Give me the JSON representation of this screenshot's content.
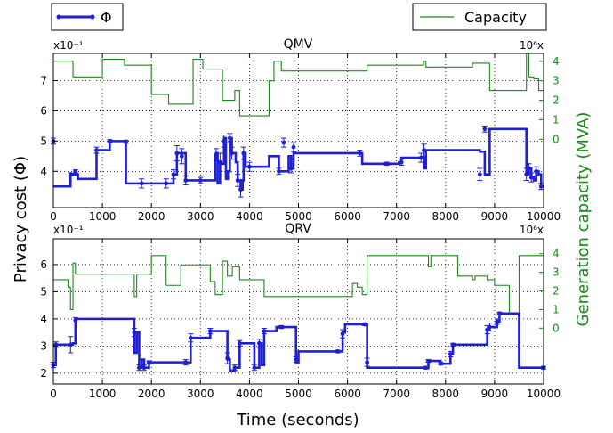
{
  "legend": {
    "phi_label": "Φ",
    "capacity_label": "Capacity"
  },
  "colors": {
    "phi": "#1f1fd6",
    "capacity": "#1a8a1a",
    "right_axis": "#1a8a1a",
    "grid": "#000000"
  },
  "shared": {
    "xlabel": "Time (seconds)",
    "ylabel_left": "Privacy cost (Φ)",
    "ylabel_right": "Generation capacity (MVA)",
    "x_ticks": [
      "0",
      "1000",
      "2000",
      "3000",
      "4000",
      "5000",
      "6000",
      "7000",
      "8000",
      "9000",
      "10000"
    ]
  },
  "chart_data": [
    {
      "type": "line",
      "title": "QMV",
      "left_multiplier": "x10⁻¹",
      "right_multiplier": "10⁶x",
      "xlim": [
        0,
        10000
      ],
      "ylim_left": [
        2.8,
        7.9
      ],
      "y_ticks_left": [
        "4",
        "5",
        "6",
        "7"
      ],
      "ylim_right": [
        -3.5,
        4.4
      ],
      "y_ticks_right": [
        "0",
        "1",
        "2",
        "3",
        "4"
      ],
      "grid": true,
      "series": [
        {
          "name": "Φ",
          "axis": "left",
          "step": true,
          "x": [
            0,
            300,
            350,
            450,
            500,
            850,
            880,
            1100,
            1150,
            1450,
            1480,
            1800,
            2300,
            2450,
            2500,
            2520,
            2620,
            2700,
            2800,
            3000,
            3300,
            3320,
            3350,
            3400,
            3420,
            3480,
            3520,
            3560,
            3600,
            3640,
            3720,
            3760,
            3800,
            3820,
            3860,
            3880,
            3920,
            4000,
            4400,
            4560,
            4600,
            4700,
            4800,
            4850,
            4900,
            4950,
            6250,
            6300,
            6800,
            7050,
            7100,
            7500,
            7560,
            7600,
            8600,
            8700,
            8800,
            8900,
            9600,
            9650,
            9700,
            9750,
            9800,
            9850,
            9900,
            9950,
            10000
          ],
          "values": [
            3.5,
            3.5,
            3.9,
            3.9,
            3.75,
            3.75,
            4.7,
            4.7,
            5.0,
            5.0,
            3.6,
            3.6,
            3.6,
            3.9,
            3.9,
            4.6,
            4.6,
            3.7,
            3.7,
            3.7,
            4.55,
            4.6,
            3.6,
            4.3,
            4.25,
            5.1,
            3.75,
            4.0,
            5.1,
            4.6,
            4.3,
            3.7,
            3.7,
            3.4,
            3.7,
            4.6,
            4.15,
            4.15,
            4.5,
            4.5,
            4.0,
            4.0,
            4.5,
            4.1,
            4.6,
            4.6,
            4.6,
            4.25,
            4.25,
            4.3,
            4.45,
            4.45,
            4.1,
            4.7,
            4.7,
            4.65,
            3.9,
            5.4,
            5.4,
            3.9,
            4.1,
            3.8,
            3.7,
            4.0,
            3.9,
            3.5,
            3.5
          ],
          "error_x": [
            0,
            350,
            450,
            880,
            1150,
            1480,
            1800,
            2300,
            2450,
            2520,
            2620,
            2700,
            3000,
            3320,
            3400,
            3480,
            3600,
            3640,
            3760,
            3820,
            3880,
            4000,
            4600,
            4700,
            4850,
            4900,
            6250,
            6800,
            7100,
            7500,
            7560,
            8700,
            8800,
            9650,
            9700,
            9750,
            9850,
            9950
          ],
          "error_y": [
            5.0,
            3.9,
            4.0,
            4.7,
            5.0,
            4.98,
            3.6,
            3.6,
            3.9,
            4.6,
            4.5,
            3.7,
            3.7,
            4.55,
            4.3,
            5.0,
            5.1,
            4.6,
            3.7,
            3.4,
            4.6,
            4.15,
            4.0,
            4.95,
            4.1,
            4.8,
            4.6,
            4.25,
            4.3,
            4.45,
            4.7,
            3.9,
            5.4,
            3.9,
            4.1,
            3.8,
            4.0,
            3.5
          ],
          "error_size": [
            0.1,
            0.05,
            0.05,
            0.1,
            0.05,
            0.05,
            0.15,
            0.15,
            0.15,
            0.25,
            0.25,
            0.15,
            0.1,
            0.2,
            0.3,
            0.2,
            0.15,
            0.2,
            0.2,
            0.25,
            0.2,
            0.15,
            0.1,
            0.15,
            0.15,
            0.15,
            0.1,
            0.05,
            0.1,
            0.15,
            0.2,
            0.2,
            0.1,
            0.2,
            0.15,
            0.15,
            0.15,
            0.1
          ]
        },
        {
          "name": "Capacity",
          "axis": "right",
          "step": true,
          "x": [
            0,
            350,
            400,
            800,
            1000,
            1400,
            1450,
            1600,
            2000,
            2350,
            2800,
            2850,
            3000,
            3050,
            3400,
            3450,
            3700,
            3800,
            3850,
            4300,
            4400,
            4500,
            4650,
            5000,
            6200,
            6400,
            7200,
            7550,
            7600,
            8200,
            8550,
            8700,
            8850,
            8900,
            9200,
            9400,
            9600,
            9650,
            9700,
            9800,
            9900,
            10000
          ],
          "values": [
            4.0,
            4.0,
            3.2,
            3.2,
            4.1,
            4.1,
            3.8,
            3.8,
            2.3,
            1.8,
            1.8,
            4.1,
            4.1,
            3.6,
            3.6,
            2.0,
            2.5,
            1.2,
            1.2,
            1.2,
            3.0,
            4.0,
            3.5,
            3.5,
            3.5,
            3.8,
            3.8,
            4.0,
            3.7,
            3.7,
            3.9,
            3.9,
            3.9,
            2.5,
            2.5,
            2.5,
            2.5,
            4.4,
            3.2,
            3.1,
            2.5,
            2.5
          ]
        }
      ]
    },
    {
      "type": "line",
      "title": "QRV",
      "left_multiplier": "x10⁻¹",
      "right_multiplier": "10⁶x",
      "xlim": [
        0,
        10000
      ],
      "ylim_left": [
        1.6,
        6.95
      ],
      "y_ticks_left": [
        "2",
        "3",
        "4",
        "5",
        "6"
      ],
      "ylim_right": [
        -3.0,
        4.8
      ],
      "y_ticks_right": [
        "0",
        "1",
        "2",
        "3",
        "4"
      ],
      "grid": true,
      "series": [
        {
          "name": "Φ",
          "axis": "left",
          "step": true,
          "x": [
            0,
            50,
            350,
            400,
            450,
            1650,
            1700,
            1750,
            1800,
            1850,
            1950,
            2700,
            2800,
            3200,
            3300,
            3550,
            3600,
            3700,
            3800,
            4100,
            4200,
            4250,
            4300,
            4550,
            4650,
            4950,
            5000,
            5800,
            5900,
            5950,
            6350,
            6400,
            7600,
            7650,
            7900,
            8100,
            8150,
            8750,
            8850,
            8900,
            9050,
            9100,
            9150,
            9500,
            10000
          ],
          "values": [
            2.3,
            3.05,
            3.05,
            3.1,
            4.0,
            2.75,
            3.5,
            2.2,
            2.5,
            2.2,
            2.4,
            2.4,
            3.3,
            3.55,
            3.55,
            2.5,
            2.1,
            2.2,
            3.1,
            2.2,
            3.1,
            2.3,
            3.55,
            3.7,
            3.7,
            2.4,
            2.8,
            2.8,
            3.5,
            3.8,
            3.8,
            2.2,
            2.2,
            2.45,
            2.35,
            2.7,
            3.05,
            3.05,
            3.6,
            3.7,
            3.9,
            4.2,
            4.2,
            2.2,
            2.2
          ],
          "error_x": [
            0,
            50,
            350,
            450,
            1650,
            1750,
            1850,
            1950,
            2700,
            2800,
            3200,
            3550,
            3700,
            3800,
            4100,
            4200,
            4300,
            4650,
            4950,
            5800,
            5900,
            6350,
            6400,
            7600,
            7650,
            7900,
            8100,
            8150,
            8850,
            8900,
            9050,
            9100,
            10000
          ],
          "error_y": [
            2.3,
            3.05,
            3.05,
            3.95,
            3.5,
            2.2,
            2.2,
            2.4,
            2.4,
            3.3,
            3.55,
            2.55,
            2.2,
            3.1,
            2.2,
            3.1,
            3.55,
            3.7,
            2.5,
            2.8,
            3.45,
            3.8,
            2.4,
            2.2,
            2.45,
            2.35,
            2.7,
            3.05,
            3.6,
            3.7,
            3.9,
            4.2,
            2.2
          ],
          "error_size": [
            0.1,
            0.1,
            0.3,
            0.1,
            0.15,
            0.1,
            0.1,
            0.05,
            0.1,
            0.15,
            0.1,
            0.2,
            0.1,
            0.1,
            0.1,
            0.15,
            0.1,
            0.05,
            0.1,
            0.05,
            0.15,
            0.05,
            0.15,
            0.05,
            0.05,
            0.05,
            0.1,
            0.05,
            0.15,
            0.15,
            0.1,
            0.05,
            0.05
          ]
        },
        {
          "name": "Capacity",
          "axis": "right",
          "step": true,
          "x": [
            0,
            250,
            300,
            350,
            400,
            450,
            1600,
            1650,
            1700,
            1800,
            2000,
            2250,
            2300,
            2550,
            2600,
            3050,
            3200,
            3300,
            3450,
            3550,
            3650,
            3800,
            4150,
            4300,
            4700,
            5050,
            6100,
            6200,
            6300,
            6400,
            7600,
            7650,
            7700,
            8150,
            8250,
            8550,
            8600,
            8850,
            9000,
            9300,
            9500,
            10000
          ],
          "values": [
            2.6,
            2.6,
            2.2,
            1.0,
            3.5,
            2.9,
            2.9,
            1.7,
            2.9,
            2.9,
            3.9,
            3.9,
            2.3,
            2.3,
            3.4,
            3.4,
            2.5,
            1.8,
            3.6,
            2.8,
            3.3,
            2.6,
            2.6,
            1.7,
            1.7,
            1.7,
            2.4,
            2.2,
            1.8,
            3.9,
            3.9,
            3.3,
            3.9,
            3.9,
            2.8,
            2.6,
            2.8,
            2.6,
            2.3,
            0.8,
            3.9,
            3.9
          ]
        }
      ]
    }
  ]
}
